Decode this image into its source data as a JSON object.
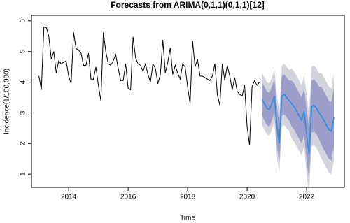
{
  "chart_data": {
    "type": "forecast",
    "title": "Forecasts from ARIMA(0,1,1)(0,1,1)[12]",
    "x_label": "Time",
    "y_label": "Incidence(1/100,000)",
    "xlim": [
      2012.75,
      2023.27
    ],
    "ylim": [
      0.57,
      6.18
    ],
    "xticks": [
      2014,
      2016,
      2018,
      2020,
      2022
    ],
    "yticks": [
      1,
      2,
      3,
      4,
      5,
      6
    ],
    "series": [
      {
        "color": "#000000",
        "x": [
          2013.0,
          2013.083,
          2013.167,
          2013.25,
          2013.333,
          2013.417,
          2013.5,
          2013.583,
          2013.667,
          2013.75,
          2013.833,
          2013.917,
          2014.0,
          2014.083,
          2014.167,
          2014.25,
          2014.333,
          2014.417,
          2014.5,
          2014.583,
          2014.667,
          2014.75,
          2014.833,
          2014.917,
          2015.0,
          2015.083,
          2015.167,
          2015.25,
          2015.333,
          2015.417,
          2015.5,
          2015.583,
          2015.667,
          2015.75,
          2015.833,
          2015.917,
          2016.0,
          2016.083,
          2016.167,
          2016.25,
          2016.333,
          2016.417,
          2016.5,
          2016.583,
          2016.667,
          2016.75,
          2016.833,
          2016.917,
          2017.0,
          2017.083,
          2017.167,
          2017.25,
          2017.333,
          2017.417,
          2017.5,
          2017.583,
          2017.667,
          2017.75,
          2017.833,
          2017.917,
          2018.0,
          2018.083,
          2018.167,
          2018.25,
          2018.333,
          2018.417,
          2018.5,
          2018.583,
          2018.667,
          2018.75,
          2018.833,
          2018.917,
          2019.0,
          2019.083,
          2019.167,
          2019.25,
          2019.333,
          2019.417,
          2019.5,
          2019.583,
          2019.667,
          2019.75,
          2019.833,
          2019.917,
          2020.0,
          2020.083,
          2020.167,
          2020.25,
          2020.333,
          2020.417
        ],
        "values": [
          4.2,
          3.75,
          5.8,
          5.78,
          5.5,
          4.75,
          5.0,
          4.3,
          4.7,
          4.6,
          4.65,
          4.7,
          4.2,
          3.95,
          5.62,
          5.1,
          5.05,
          4.95,
          4.55,
          4.55,
          4.95,
          4.1,
          4.1,
          4.5,
          3.9,
          3.4,
          5.62,
          5.0,
          4.6,
          4.55,
          4.7,
          4.9,
          4.45,
          4.05,
          4.05,
          4.6,
          3.8,
          3.75,
          5.48,
          4.8,
          4.6,
          4.55,
          4.35,
          4.6,
          4.25,
          4.0,
          4.6,
          4.45,
          3.95,
          4.25,
          5.38,
          4.3,
          4.65,
          5.12,
          4.25,
          4.55,
          4.3,
          4.1,
          4.6,
          4.5,
          3.85,
          3.3,
          5.35,
          4.5,
          4.75,
          4.2,
          4.2,
          4.15,
          4.1,
          4.05,
          4.2,
          4.6,
          3.6,
          3.25,
          4.6,
          4.05,
          4.55,
          4.2,
          3.75,
          4.15,
          3.7,
          3.6,
          3.55,
          3.9,
          2.55,
          1.95,
          3.85,
          4.05,
          3.9,
          4.0
        ]
      },
      {
        "color": "#2b8fe0",
        "x": [
          2020.5,
          2020.583,
          2020.667,
          2020.75,
          2020.833,
          2020.917,
          2021.0,
          2021.083,
          2021.167,
          2021.25,
          2021.333,
          2021.417,
          2021.5,
          2021.583,
          2021.667,
          2021.75,
          2021.833,
          2021.917,
          2022.0,
          2022.083,
          2022.167,
          2022.25,
          2022.333,
          2022.417,
          2022.5,
          2022.583,
          2022.667,
          2022.75,
          2022.833,
          2022.917
        ],
        "values": [
          3.45,
          3.3,
          3.15,
          3.1,
          3.3,
          3.55,
          2.6,
          2.0,
          3.55,
          3.6,
          3.5,
          3.4,
          3.3,
          3.2,
          3.05,
          2.9,
          2.75,
          3.05,
          2.3,
          1.65,
          3.2,
          3.25,
          3.15,
          3.0,
          2.9,
          2.75,
          2.6,
          2.45,
          2.4,
          2.85
        ]
      }
    ],
    "intervals": [
      {
        "color": "#d3d3dd",
        "lower": [
          2.6,
          2.45,
          2.3,
          2.25,
          2.45,
          2.7,
          1.6,
          1.0,
          2.55,
          2.6,
          2.5,
          2.4,
          2.15,
          2.05,
          1.9,
          1.75,
          1.6,
          1.9,
          1.0,
          0.35,
          1.9,
          1.95,
          1.85,
          1.7,
          1.5,
          1.35,
          1.2,
          1.05,
          1.0,
          1.45
        ],
        "upper": [
          4.3,
          4.15,
          4.0,
          3.95,
          4.15,
          4.4,
          3.6,
          3.0,
          4.55,
          4.6,
          4.5,
          4.4,
          4.45,
          4.35,
          4.2,
          4.05,
          3.9,
          4.2,
          3.6,
          2.95,
          4.5,
          4.55,
          4.45,
          4.3,
          4.3,
          4.15,
          4.0,
          3.85,
          3.8,
          4.25
        ]
      },
      {
        "color": "#9c9dc8",
        "lower": [
          2.9,
          2.75,
          2.6,
          2.55,
          2.75,
          3.0,
          1.95,
          1.35,
          2.9,
          2.95,
          2.85,
          2.75,
          2.55,
          2.45,
          2.3,
          2.15,
          2.0,
          2.3,
          1.45,
          0.8,
          2.35,
          2.4,
          2.3,
          2.15,
          1.95,
          1.8,
          1.65,
          1.5,
          1.45,
          1.9
        ],
        "upper": [
          4.0,
          3.85,
          3.7,
          3.65,
          3.85,
          4.1,
          3.25,
          2.65,
          4.2,
          4.25,
          4.15,
          4.05,
          4.05,
          3.95,
          3.8,
          3.65,
          3.5,
          3.8,
          3.15,
          2.5,
          4.05,
          4.1,
          4.0,
          3.85,
          3.85,
          3.7,
          3.55,
          3.4,
          3.35,
          3.8
        ]
      }
    ]
  }
}
